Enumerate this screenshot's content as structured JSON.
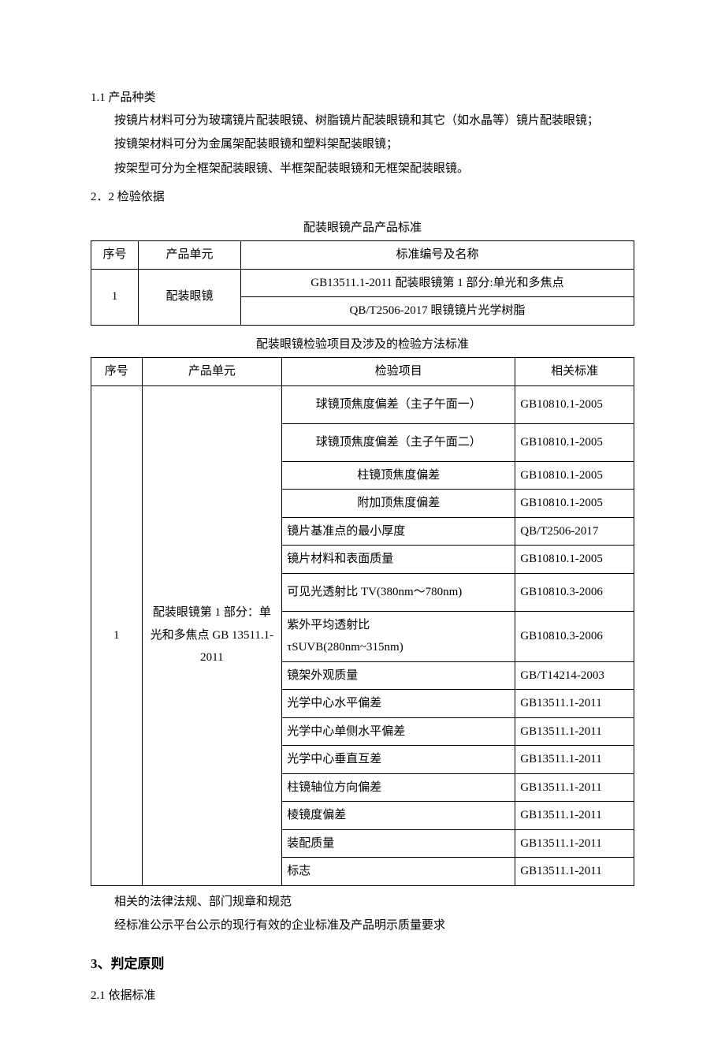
{
  "s1_1": {
    "num": "1.1 产品种类",
    "p1": "按镜片材料可分为玻璃镜片配装眼镜、树脂镜片配装眼镜和其它（如水晶等）镜片配装眼镜；",
    "p2": "按镜架材料可分为金属架配装眼镜和塑料架配装眼镜；",
    "p3": "按架型可分为全框架配装眼镜、半框架配装眼镜和无框架配装眼镜。"
  },
  "s2_2": {
    "num": "2．2 检验依据"
  },
  "table1": {
    "caption": "配装眼镜产品产品标准",
    "headers": {
      "c1": "序号",
      "c2": "产品单元",
      "c3": "标准编号及名称"
    },
    "row1": {
      "seq": "1",
      "unit": "配装眼镜",
      "std1": "GB13511.1-2011 配装眼镜第 1 部分:单光和多焦点",
      "std2": "QB/T2506-2017 眼镜镜片光学树脂"
    }
  },
  "table2": {
    "caption": "配装眼镜检验项目及涉及的检验方法标准",
    "headers": {
      "c1": "序号",
      "c2": "产品单元",
      "c3": "检验项目",
      "c4": "相关标准"
    },
    "seq": "1",
    "unit": "配装眼镜第 1 部分：单光和多焦点 GB 13511.1-2011",
    "rows": [
      {
        "item": "球镜顶焦度偏差（主子午面一）",
        "std": "GB10810.1-2005",
        "center": true,
        "tall": true
      },
      {
        "item": "球镜顶焦度偏差（主子午面二）",
        "std": "GB10810.1-2005",
        "center": true,
        "tall": true
      },
      {
        "item": "柱镜顶焦度偏差",
        "std": "GB10810.1-2005",
        "center": true
      },
      {
        "item": "附加顶焦度偏差",
        "std": "GB10810.1-2005",
        "center": true
      },
      {
        "item": "镜片基准点的最小厚度",
        "std": "QB/T2506-2017"
      },
      {
        "item": "镜片材料和表面质量",
        "std": "GB10810.1-2005"
      },
      {
        "item": "可见光透射比 TV(380nm～780nm)",
        "std": "GB10810.3-2006",
        "tall": true
      },
      {
        "item": "紫外平均透射比\nτSUVB(280nm~315nm)",
        "std": "GB10810.3-2006",
        "tall": true
      },
      {
        "item": "镜架外观质量",
        "std": "GB/T14214-2003"
      },
      {
        "item": "光学中心水平偏差",
        "std": "GB13511.1-2011"
      },
      {
        "item": "光学中心单侧水平偏差",
        "std": "GB13511.1-2011"
      },
      {
        "item": "光学中心垂直互差",
        "std": "GB13511.1-2011"
      },
      {
        "item": "柱镜轴位方向偏差",
        "std": "GB13511.1-2011"
      },
      {
        "item": "棱镜度偏差",
        "std": "GB13511.1-2011"
      },
      {
        "item": "装配质量",
        "std": "GB13511.1-2011"
      },
      {
        "item": "标志",
        "std": "GB13511.1-2011"
      }
    ]
  },
  "notes": {
    "n1": "相关的法律法规、部门规章和规范",
    "n2": "经标准公示平台公示的现行有效的企业标准及产品明示质量要求"
  },
  "s3": {
    "title": "3、判定原则"
  },
  "s2_1": {
    "num": "2.1 依据标准"
  }
}
